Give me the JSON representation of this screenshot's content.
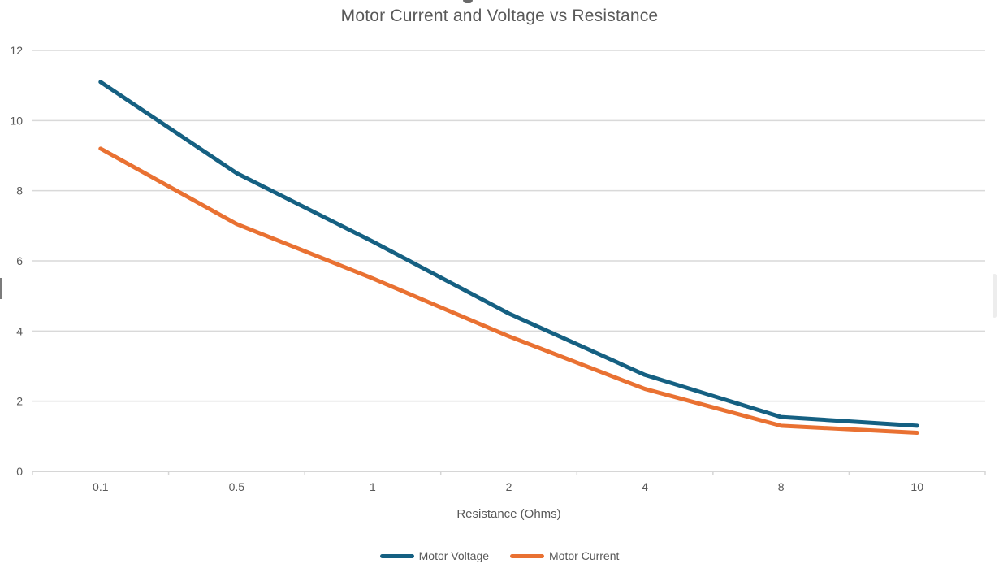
{
  "chart_data": {
    "type": "line",
    "title": "Motor Current and Voltage vs Resistance",
    "categories": [
      "0.1",
      "0.5",
      "1",
      "2",
      "4",
      "8",
      "10"
    ],
    "series": [
      {
        "name": "Motor Voltage",
        "color": "#156082",
        "values": [
          11.1,
          8.5,
          6.55,
          4.5,
          2.75,
          1.55,
          1.3
        ]
      },
      {
        "name": "Motor Current",
        "color": "#E97132",
        "values": [
          9.2,
          7.05,
          5.5,
          3.85,
          2.35,
          1.3,
          1.1
        ]
      }
    ],
    "xlabel": "Resistance (Ohms)",
    "ylabel": "",
    "ylim": [
      0,
      12
    ],
    "ytick_step": 2,
    "yticks": [
      "0",
      "2",
      "4",
      "6",
      "8",
      "10",
      "12"
    ],
    "grid": true,
    "legend_position": "bottom",
    "colors": {
      "gridline": "#D9D9D9",
      "axis_line": "#D6D6D6",
      "tick_text": "#595959",
      "title_text": "#595959"
    }
  }
}
